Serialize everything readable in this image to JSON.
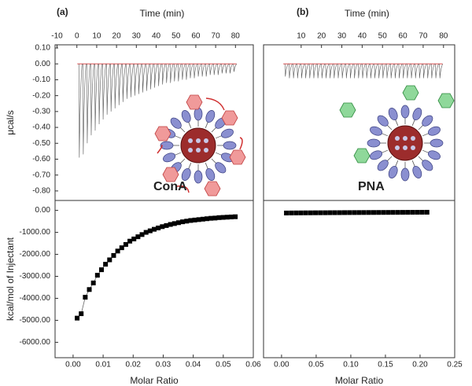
{
  "chart_data": [
    {
      "type": "spikes",
      "title": "(a)",
      "xlabel": "Time (min)",
      "ylabel": "μcal/s",
      "xlim": [
        -11,
        89
      ],
      "xticks": [
        -10,
        0,
        10,
        20,
        30,
        40,
        50,
        60,
        70,
        80
      ],
      "ylim": [
        -0.86,
        0.12
      ],
      "yticks": [
        {
          "value": 0.1,
          "label": "0.10"
        },
        {
          "value": 0,
          "label": "0.00"
        },
        {
          "value": -0.1,
          "label": "-0.10"
        },
        {
          "value": -0.2,
          "label": "-0.20"
        },
        {
          "value": -0.3,
          "label": "-0.30"
        },
        {
          "value": -0.4,
          "label": "-0.40"
        },
        {
          "value": -0.5,
          "label": "-0.50"
        },
        {
          "value": -0.6,
          "label": "-0.60"
        },
        {
          "value": -0.7,
          "label": "-0.70"
        },
        {
          "value": -0.8,
          "label": "-0.80"
        }
      ],
      "color": "#555555",
      "baseline_color": "#e05050",
      "x": [
        1,
        3,
        5,
        7,
        9,
        11,
        13,
        15,
        17,
        19,
        21,
        23,
        25,
        27,
        29,
        31,
        33,
        35,
        37,
        39,
        41,
        43,
        45,
        47,
        49,
        51,
        53,
        55,
        57,
        59,
        61,
        63,
        65,
        67,
        69,
        71,
        73,
        75,
        77,
        79
      ],
      "values": [
        -0.59,
        -0.57,
        -0.5,
        -0.45,
        -0.42,
        -0.38,
        -0.35,
        -0.32,
        -0.3,
        -0.28,
        -0.26,
        -0.24,
        -0.22,
        -0.21,
        -0.2,
        -0.19,
        -0.18,
        -0.17,
        -0.16,
        -0.15,
        -0.14,
        -0.13,
        -0.12,
        -0.12,
        -0.11,
        -0.11,
        -0.1,
        -0.1,
        -0.09,
        -0.09,
        -0.08,
        -0.08,
        -0.08,
        -0.07,
        -0.07,
        -0.07,
        -0.06,
        -0.06,
        -0.06,
        -0.05
      ],
      "annotation": "ConA",
      "annotation_color": "#d03838"
    },
    {
      "type": "scatter",
      "xlabel": "Molar Ratio",
      "ylabel": "kcal/mol of Injectant",
      "xlim": [
        -0.006,
        0.06
      ],
      "xticks": [
        {
          "value": 0,
          "label": "0.00"
        },
        {
          "value": 0.01,
          "label": "0.01"
        },
        {
          "value": 0.02,
          "label": "0.02"
        },
        {
          "value": 0.03,
          "label": "0.03"
        },
        {
          "value": 0.04,
          "label": "0.04"
        },
        {
          "value": 0.05,
          "label": "0.05"
        },
        {
          "value": 0.06,
          "label": "0.06"
        }
      ],
      "ylim": [
        -6700,
        450
      ],
      "yticks": [
        {
          "value": 0,
          "label": "0.00"
        },
        {
          "value": -1000,
          "label": "-1000.00"
        },
        {
          "value": -2000,
          "label": "-2000.00"
        },
        {
          "value": -3000,
          "label": "-3000.00"
        },
        {
          "value": -4000,
          "label": "-4000.00"
        },
        {
          "value": -5000,
          "label": "-5000.00"
        },
        {
          "value": -6000,
          "label": "-6000.00"
        }
      ],
      "color": "#000000",
      "x": [
        0.00135,
        0.0027,
        0.00405,
        0.0054,
        0.00675,
        0.0081,
        0.00945,
        0.0108,
        0.01215,
        0.0135,
        0.01485,
        0.0162,
        0.01755,
        0.0189,
        0.02025,
        0.0216,
        0.02295,
        0.0243,
        0.02565,
        0.027,
        0.02835,
        0.0297,
        0.03105,
        0.0324,
        0.03375,
        0.0351,
        0.03645,
        0.0378,
        0.03915,
        0.0405,
        0.04185,
        0.0432,
        0.04455,
        0.0459,
        0.04725,
        0.0486,
        0.04995,
        0.0513,
        0.05265,
        0.054
      ],
      "values": [
        -4900,
        -4700,
        -3950,
        -3600,
        -3300,
        -2950,
        -2700,
        -2450,
        -2250,
        -2050,
        -1850,
        -1700,
        -1550,
        -1400,
        -1300,
        -1200,
        -1100,
        -1000,
        -930,
        -860,
        -800,
        -740,
        -690,
        -640,
        -600,
        -560,
        -520,
        -490,
        -460,
        -440,
        -420,
        -400,
        -380,
        -360,
        -350,
        -330,
        -320,
        -310,
        -300,
        -290
      ]
    },
    {
      "type": "spikes",
      "title": "(b)",
      "xlabel": "Time (min)",
      "xlim": [
        -8.5,
        85.5
      ],
      "xticks": [
        10,
        20,
        30,
        40,
        50,
        60,
        70,
        80
      ],
      "ylim": [
        -0.86,
        0.12
      ],
      "color": "#555555",
      "baseline_color": "#e05050",
      "x": [
        2,
        4,
        6,
        8,
        10,
        12,
        14,
        16,
        18,
        20,
        22,
        24,
        26,
        28,
        30,
        32,
        34,
        36,
        38,
        40,
        42,
        44,
        46,
        48,
        50,
        52,
        54,
        56,
        58,
        60,
        62,
        64,
        66,
        68,
        70,
        72,
        74,
        76,
        78
      ],
      "values": [
        -0.08,
        -0.09,
        -0.09,
        -0.09,
        -0.09,
        -0.09,
        -0.09,
        -0.09,
        -0.09,
        -0.09,
        -0.09,
        -0.09,
        -0.09,
        -0.09,
        -0.09,
        -0.09,
        -0.09,
        -0.09,
        -0.09,
        -0.09,
        -0.09,
        -0.09,
        -0.09,
        -0.09,
        -0.09,
        -0.09,
        -0.09,
        -0.09,
        -0.09,
        -0.09,
        -0.09,
        -0.09,
        -0.09,
        -0.09,
        -0.09,
        -0.09,
        -0.09,
        -0.09,
        -0.09
      ],
      "annotation": "PNA",
      "annotation_color": "#2e8b3e"
    },
    {
      "type": "scatter",
      "xlabel": "Molar Ratio",
      "xlim": [
        -0.026,
        0.25
      ],
      "xticks": [
        {
          "value": 0,
          "label": "0.00"
        },
        {
          "value": 0.05,
          "label": "0.05"
        },
        {
          "value": 0.1,
          "label": "0.10"
        },
        {
          "value": 0.15,
          "label": "0.15"
        },
        {
          "value": 0.2,
          "label": "0.20"
        },
        {
          "value": 0.25,
          "label": "0.25"
        }
      ],
      "ylim": [
        -6700,
        450
      ],
      "color": "#000000",
      "x": [
        0.007,
        0.014,
        0.021,
        0.028,
        0.035,
        0.042,
        0.049,
        0.056,
        0.063,
        0.07,
        0.077,
        0.084,
        0.091,
        0.098,
        0.105,
        0.112,
        0.119,
        0.126,
        0.133,
        0.14,
        0.147,
        0.154,
        0.161,
        0.168,
        0.175,
        0.182,
        0.189,
        0.196,
        0.203,
        0.21
      ],
      "values": [
        -120,
        -118,
        -116,
        -115,
        -113,
        -112,
        -110,
        -109,
        -108,
        -106,
        -105,
        -104,
        -102,
        -101,
        -100,
        -99,
        -98,
        -97,
        -96,
        -95,
        -94,
        -93,
        -92,
        -91,
        -90,
        -89,
        -88,
        -87,
        -86,
        -85
      ]
    }
  ]
}
